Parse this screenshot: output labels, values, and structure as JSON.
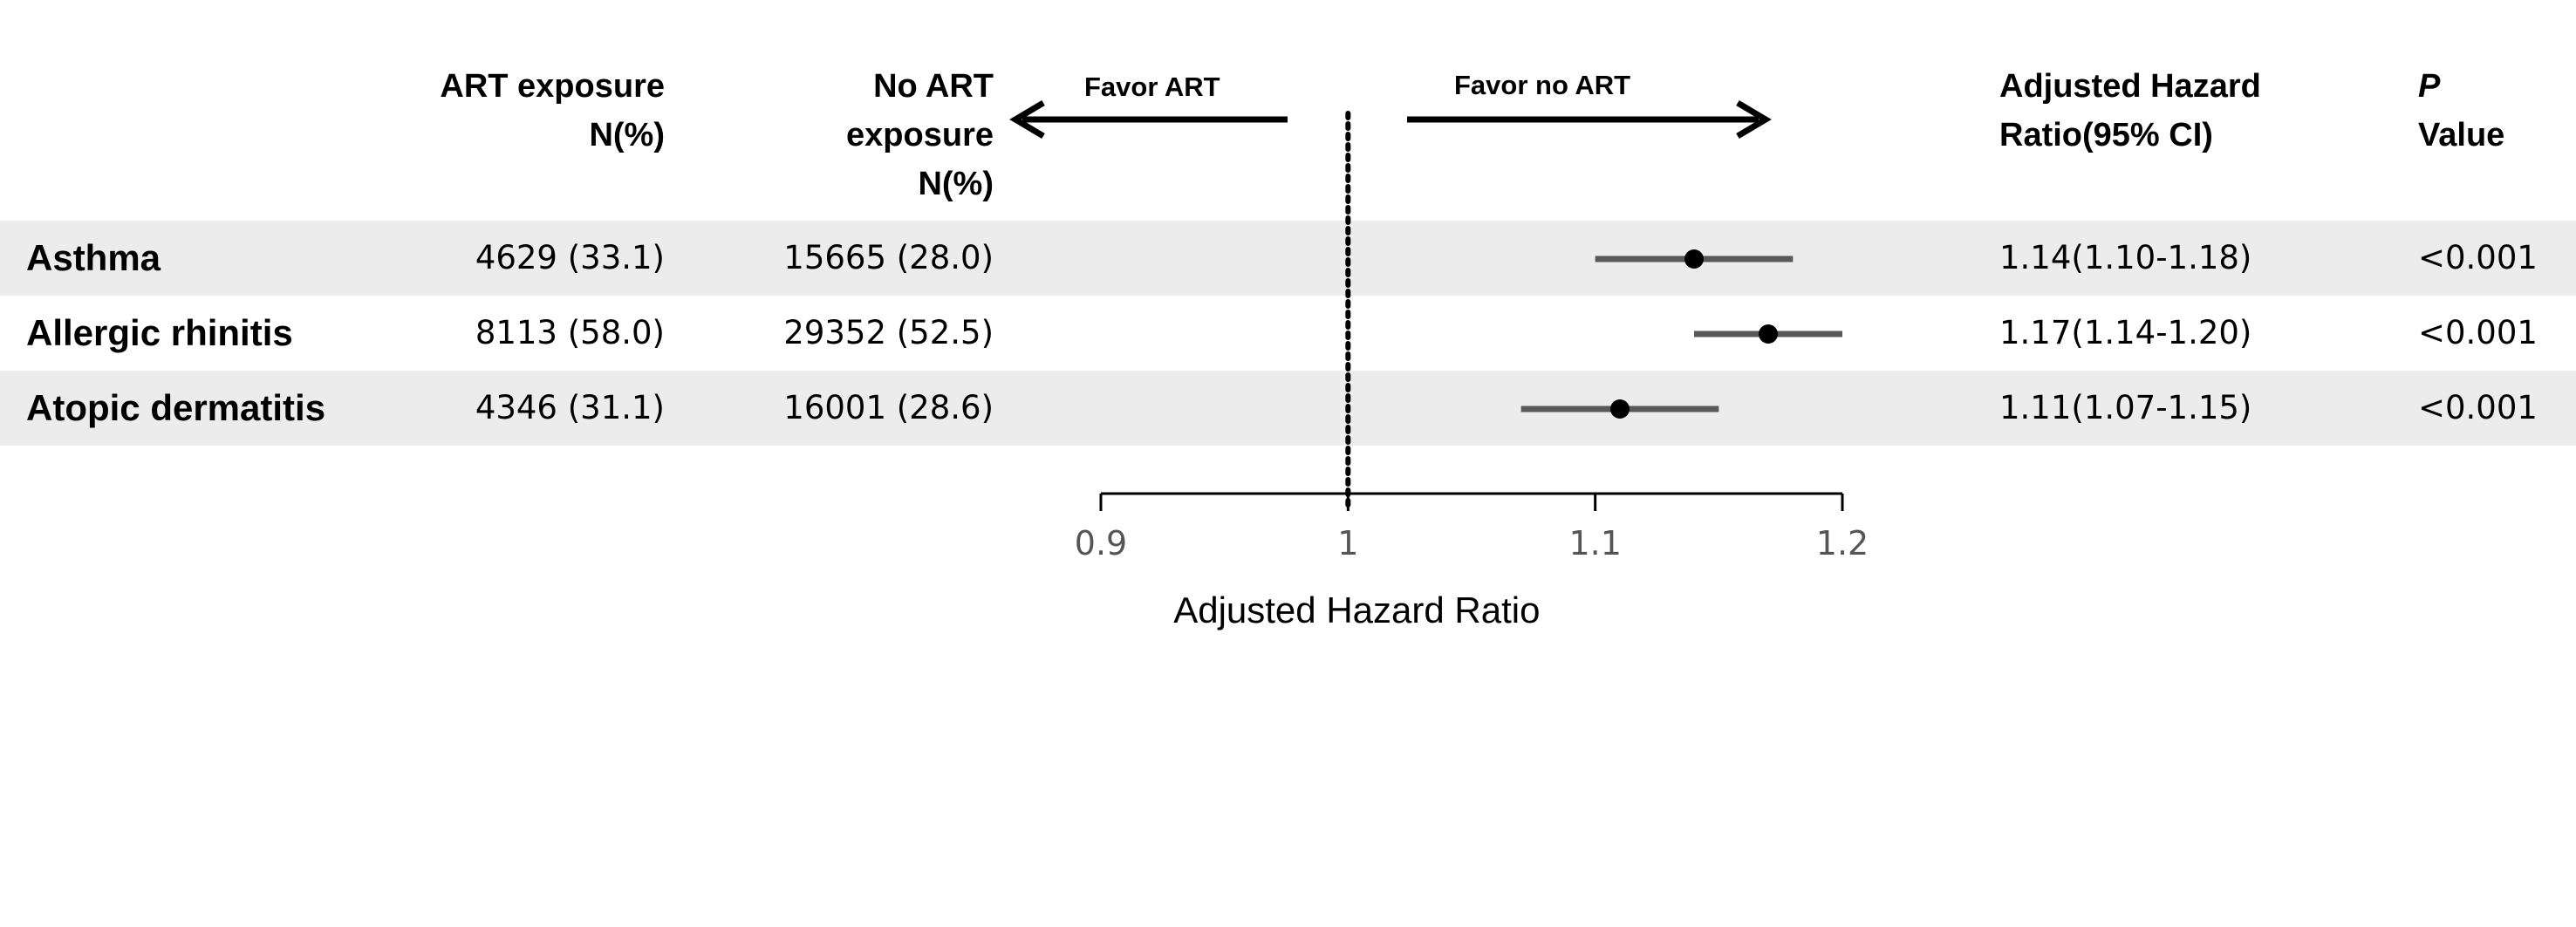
{
  "colors": {
    "band": "#ececec",
    "ci_line": "#595959",
    "point": "#000000",
    "axis": "#000000",
    "tick_text": "#555555"
  },
  "headers": {
    "art_exposure": [
      "ART exposure",
      "N(%)"
    ],
    "no_art_exposure": [
      "No ART",
      "exposure",
      "N(%)"
    ],
    "ahr": [
      "Adjusted Hazard",
      "Ratio(95% CI)"
    ],
    "p_value_italic": "P",
    "p_value_rest": "Value"
  },
  "favor": {
    "left": "Favor  ART",
    "right": "Favor no ART"
  },
  "rows": [
    {
      "label": "Asthma",
      "art": "4629 (33.1)",
      "no_art": "15665 (28.0)",
      "ahr_text": "1.14(1.10-1.18)",
      "p": "<0.001"
    },
    {
      "label": "Allergic rhinitis",
      "art": "8113 (58.0)",
      "no_art": "29352 (52.5)",
      "ahr_text": "1.17(1.14-1.20)",
      "p": "<0.001"
    },
    {
      "label": "Atopic dermatitis",
      "art": "4346 (31.1)",
      "no_art": "16001 (28.6)",
      "ahr_text": "1.11(1.07-1.15)",
      "p": "<0.001"
    }
  ],
  "chart_data": {
    "type": "scatter",
    "subtype": "forest-plot",
    "categories": [
      "Asthma",
      "Allergic rhinitis",
      "Atopic dermatitis"
    ],
    "series": [
      {
        "values": [
          1.14,
          1.17,
          1.11
        ],
        "lower": [
          1.1,
          1.14,
          1.07
        ],
        "upper": [
          1.18,
          1.2,
          1.15
        ]
      }
    ],
    "reference_line": 1,
    "xlim": [
      0.9,
      1.2
    ],
    "xticks": [
      "0.9",
      "1",
      "1.1",
      "1.2"
    ],
    "xlabel": "Adjusted Hazard Ratio",
    "grid": false
  }
}
